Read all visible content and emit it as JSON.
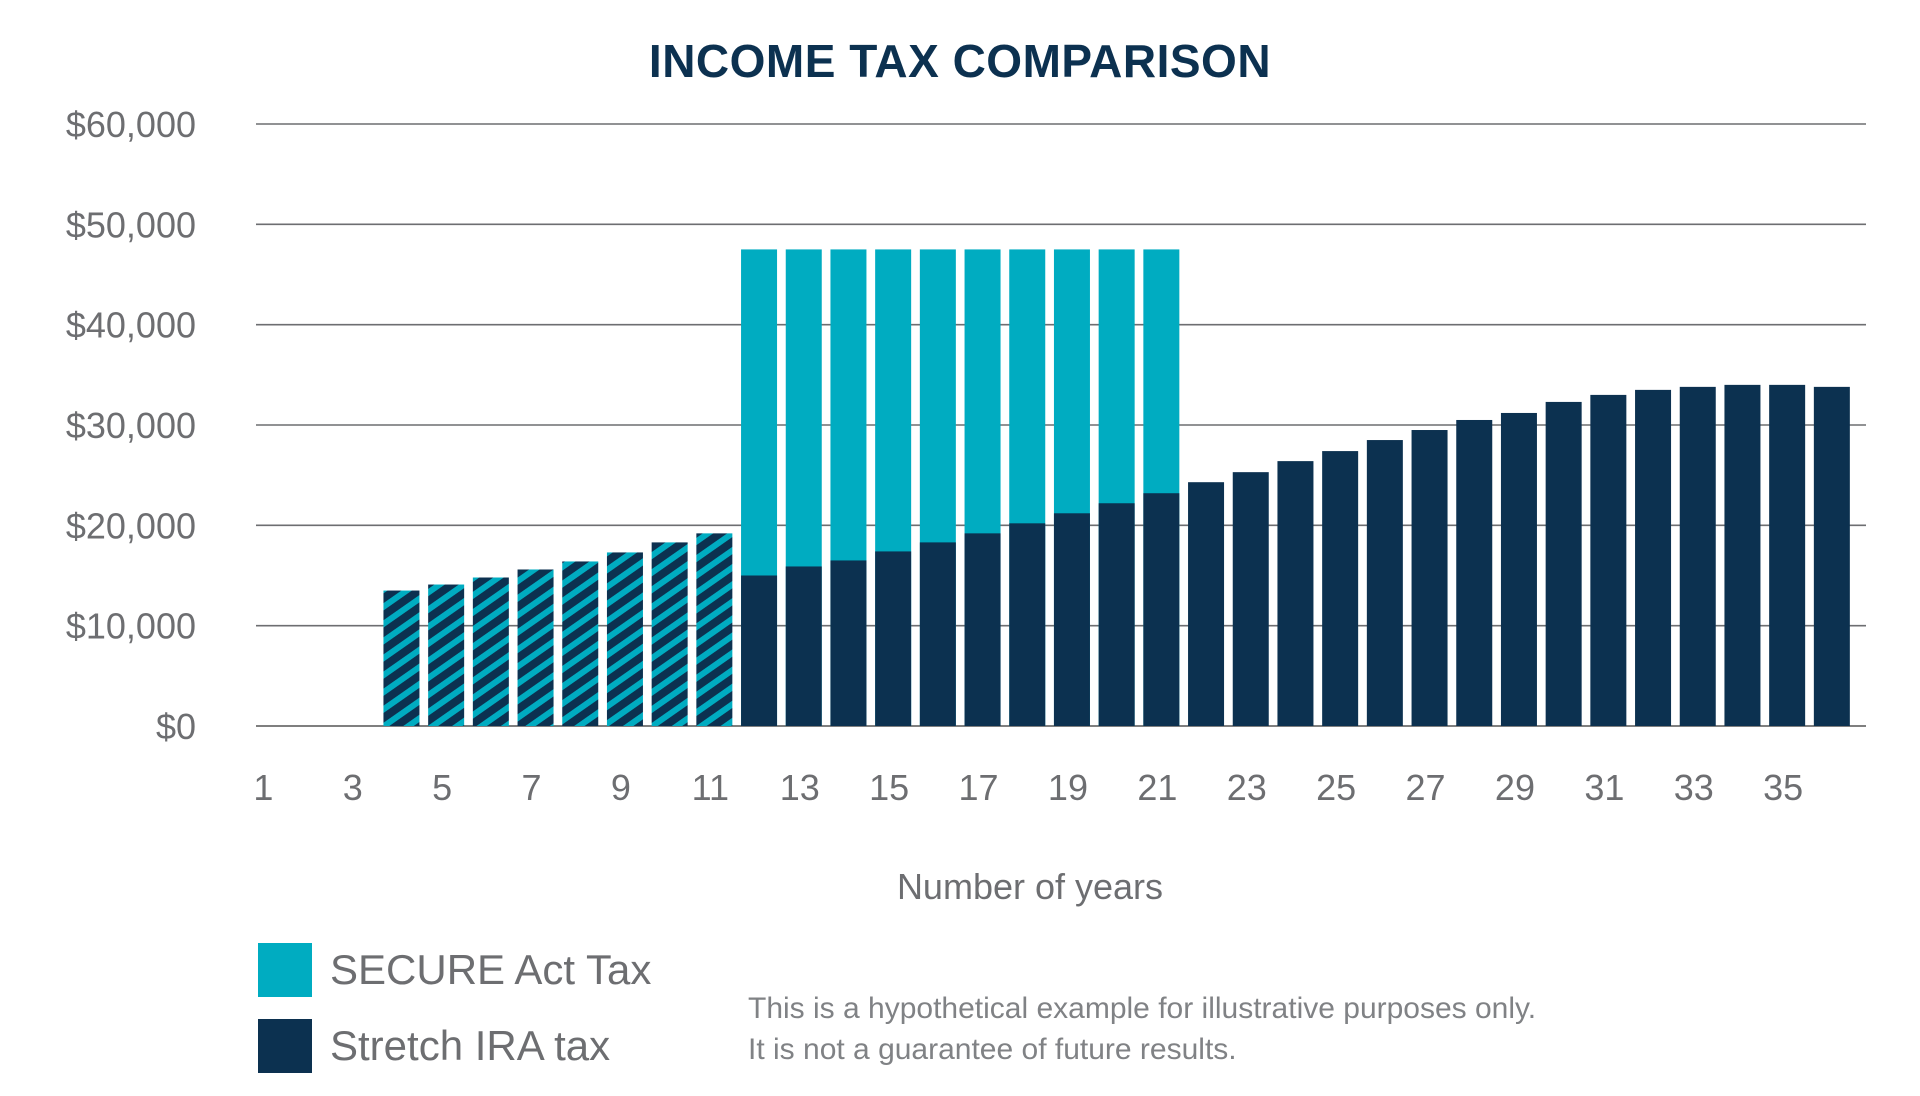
{
  "chart_data": {
    "type": "bar",
    "title": "INCOME TAX COMPARISON",
    "xlabel": "Number of years",
    "ylabel": "",
    "ylim": [
      0,
      60000
    ],
    "yticks": [
      "$0",
      "$10,000",
      "$20,000",
      "$30,000",
      "$40,000",
      "$50,000",
      "$60,000"
    ],
    "x": [
      1,
      2,
      3,
      4,
      5,
      6,
      7,
      8,
      9,
      10,
      11,
      12,
      13,
      14,
      15,
      16,
      17,
      18,
      19,
      20,
      21,
      22,
      23,
      24,
      25,
      26,
      27,
      28,
      29,
      30,
      31,
      32,
      33,
      34,
      35,
      36
    ],
    "xtick_labels": [
      "1",
      "3",
      "5",
      "7",
      "9",
      "11",
      "13",
      "15",
      "17",
      "19",
      "21",
      "23",
      "25",
      "27",
      "29",
      "31",
      "33",
      "35"
    ],
    "series": [
      {
        "name": "SECURE Act Tax",
        "color": "#00acc1",
        "values": [
          0,
          0,
          0,
          13500,
          14100,
          14800,
          15600,
          16400,
          17300,
          18300,
          19200,
          47500,
          47500,
          47500,
          47500,
          47500,
          47500,
          47500,
          47500,
          47500,
          47500,
          0,
          0,
          0,
          0,
          0,
          0,
          0,
          0,
          0,
          0,
          0,
          0,
          0,
          0,
          0
        ]
      },
      {
        "name": "Stretch IRA tax",
        "color": "#0c3150",
        "values": [
          0,
          0,
          0,
          13500,
          14100,
          14800,
          15600,
          16400,
          17300,
          18300,
          19200,
          15000,
          15900,
          16500,
          17400,
          18300,
          19200,
          20200,
          21200,
          22200,
          23200,
          24300,
          25300,
          26400,
          27400,
          28500,
          29500,
          30500,
          31200,
          32300,
          33000,
          33500,
          33800,
          34000,
          34000,
          33800
        ]
      }
    ],
    "legend": "bottom-left",
    "grid": true
  },
  "disclaimer": {
    "line1": "This is a hypothetical example for illustrative purposes only.",
    "line2": "It is not a guarantee of future results."
  }
}
